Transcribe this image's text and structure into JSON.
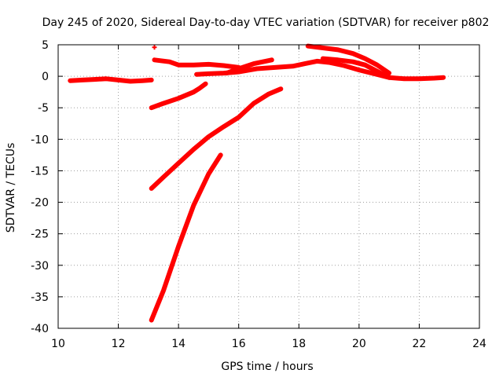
{
  "chart_data": {
    "type": "scatter",
    "title": "Day 245 of 2020, Sidereal Day-to-day VTEC variation (SDTVAR) for receiver p802",
    "xlabel": "GPS time / hours",
    "ylabel": "SDTVAR / TECUs",
    "xlim": [
      10,
      24
    ],
    "ylim": [
      -40,
      5
    ],
    "xticks": [
      "10",
      "12",
      "14",
      "16",
      "18",
      "20",
      "22",
      "24"
    ],
    "yticks": [
      "5",
      "0",
      "-5",
      "-10",
      "-15",
      "-20",
      "-25",
      "-30",
      "-35",
      "-40"
    ],
    "grid": true,
    "legend": "none",
    "color": "#ff0000",
    "series": [
      {
        "name": "track-1",
        "points": [
          [
            10.4,
            -0.7
          ],
          [
            10.8,
            -0.6
          ],
          [
            11.2,
            -0.5
          ],
          [
            11.6,
            -0.4
          ],
          [
            12.0,
            -0.6
          ],
          [
            12.4,
            -0.8
          ],
          [
            12.8,
            -0.7
          ],
          [
            13.1,
            -0.6
          ]
        ]
      },
      {
        "name": "track-2",
        "points": [
          [
            13.2,
            2.6
          ],
          [
            13.7,
            2.3
          ],
          [
            14.0,
            1.8
          ],
          [
            14.5,
            1.8
          ],
          [
            15.0,
            1.9
          ],
          [
            15.5,
            1.7
          ],
          [
            16.0,
            1.4
          ]
        ]
      },
      {
        "name": "track-3",
        "points": [
          [
            13.2,
            4.6
          ]
        ]
      },
      {
        "name": "track-4",
        "points": [
          [
            14.6,
            0.3
          ],
          [
            15.0,
            0.4
          ],
          [
            15.5,
            0.5
          ],
          [
            16.0,
            0.7
          ],
          [
            16.6,
            1.2
          ],
          [
            17.2,
            1.4
          ],
          [
            17.8,
            1.6
          ],
          [
            18.2,
            2.0
          ],
          [
            18.6,
            2.4
          ],
          [
            19.0,
            2.2
          ],
          [
            19.5,
            1.7
          ],
          [
            20.0,
            1.0
          ],
          [
            20.5,
            0.4
          ],
          [
            21.0,
            -0.2
          ],
          [
            21.5,
            -0.4
          ],
          [
            22.0,
            -0.4
          ],
          [
            22.5,
            -0.3
          ],
          [
            22.8,
            -0.2
          ]
        ]
      },
      {
        "name": "track-5",
        "points": [
          [
            15.6,
            0.5
          ],
          [
            16.0,
            1.2
          ],
          [
            16.5,
            2.0
          ],
          [
            17.1,
            2.6
          ]
        ]
      },
      {
        "name": "track-6",
        "points": [
          [
            18.3,
            4.8
          ],
          [
            18.8,
            4.5
          ],
          [
            19.3,
            4.2
          ],
          [
            19.8,
            3.6
          ],
          [
            20.2,
            2.8
          ],
          [
            20.6,
            1.8
          ],
          [
            21.0,
            0.5
          ]
        ]
      },
      {
        "name": "track-7",
        "points": [
          [
            18.8,
            2.8
          ],
          [
            19.3,
            2.6
          ],
          [
            19.8,
            2.3
          ],
          [
            20.2,
            1.8
          ],
          [
            20.6,
            0.8
          ],
          [
            21.0,
            -0.2
          ]
        ]
      },
      {
        "name": "track-8",
        "points": [
          [
            13.1,
            -5.0
          ],
          [
            13.5,
            -4.3
          ],
          [
            14.0,
            -3.5
          ],
          [
            14.5,
            -2.5
          ],
          [
            14.7,
            -1.9
          ],
          [
            14.9,
            -1.2
          ]
        ]
      },
      {
        "name": "track-9",
        "points": [
          [
            13.1,
            -17.8
          ],
          [
            13.5,
            -16.0
          ],
          [
            14.0,
            -13.8
          ],
          [
            14.5,
            -11.6
          ],
          [
            15.0,
            -9.6
          ],
          [
            15.5,
            -8.0
          ],
          [
            16.0,
            -6.5
          ],
          [
            16.5,
            -4.3
          ],
          [
            17.0,
            -2.8
          ],
          [
            17.4,
            -2.0
          ]
        ]
      },
      {
        "name": "track-10",
        "points": [
          [
            13.1,
            -38.7
          ],
          [
            13.5,
            -34.0
          ],
          [
            14.0,
            -27.0
          ],
          [
            14.5,
            -20.5
          ],
          [
            15.0,
            -15.5
          ],
          [
            15.4,
            -12.5
          ]
        ]
      }
    ]
  }
}
